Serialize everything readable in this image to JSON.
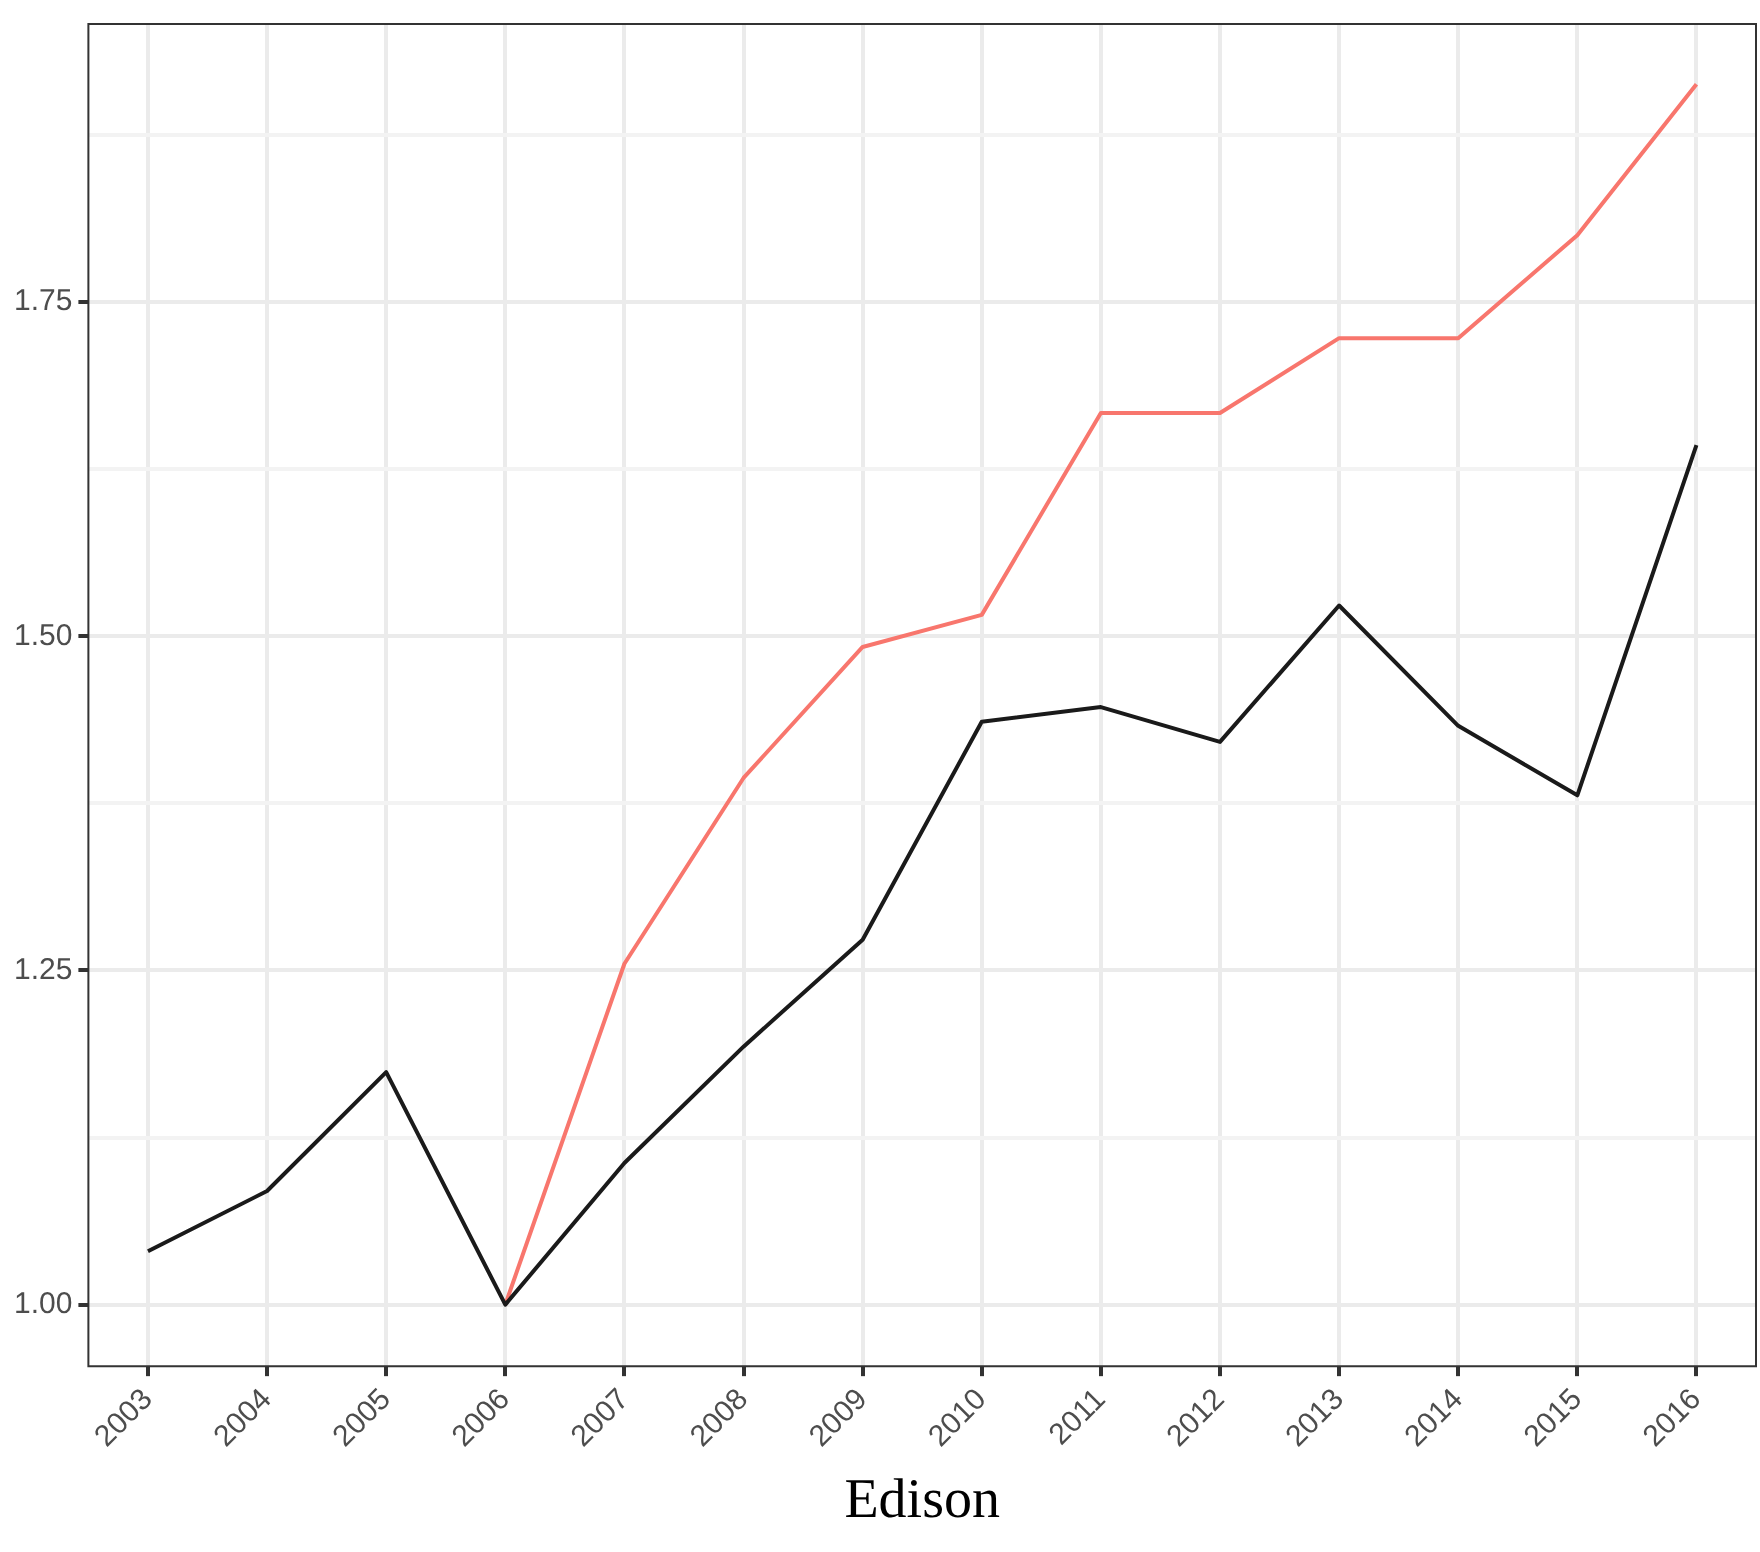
{
  "chart_data": {
    "type": "line",
    "xlabel": "Edison",
    "categories": [
      "2003",
      "2004",
      "2005",
      "2006",
      "2007",
      "2008",
      "2009",
      "2010",
      "2011",
      "2012",
      "2013",
      "2014",
      "2015",
      "2016"
    ],
    "series": [
      {
        "color": "#1a1a1a",
        "values": [
          1.04,
          1.085,
          1.174,
          1.0,
          1.106,
          1.193,
          1.273,
          1.436,
          1.447,
          1.421,
          1.523,
          1.433,
          1.381,
          1.643
        ]
      },
      {
        "color": "#f8766d",
        "values": [
          null,
          null,
          null,
          1.0,
          1.255,
          1.394,
          1.492,
          1.516,
          1.667,
          1.667,
          1.723,
          1.723,
          1.8,
          1.913
        ]
      }
    ],
    "ylim": [
      0.954,
      1.958
    ],
    "yticks": [
      {
        "value": 1.0,
        "label": "1.00"
      },
      {
        "value": 1.125,
        "label": null
      },
      1.25,
      {
        "value": 1.375,
        "label": null
      },
      {
        "value": 1.5,
        "label": "1.50"
      },
      {
        "value": 1.625,
        "label": null
      },
      1.75,
      {
        "value": 1.875,
        "label": null
      }
    ],
    "grid": true,
    "legend": false,
    "marker": "none",
    "line_style": "solid"
  }
}
